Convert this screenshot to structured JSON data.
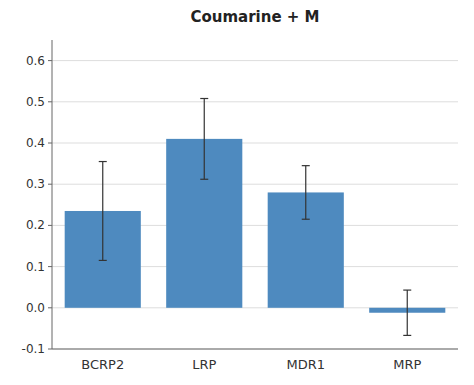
{
  "chart_data": {
    "type": "bar",
    "title": "Coumarine + M",
    "categories": [
      "BCRP2",
      "LRP",
      "MDR1",
      "MRP"
    ],
    "values": [
      0.235,
      0.41,
      0.28,
      -0.012
    ],
    "errors_up": [
      0.12,
      0.098,
      0.065,
      0.055
    ],
    "errors_down": [
      0.12,
      0.098,
      0.065,
      0.055
    ],
    "color": "#4e8abf",
    "ylim": [
      -0.1,
      0.65
    ],
    "yticks": [
      -0.1,
      {
        "value": 0.0,
        "label": "0.0"
      },
      0.1,
      0.2,
      0.3,
      0.4,
      0.5,
      0.6
    ],
    "grid": true
  }
}
